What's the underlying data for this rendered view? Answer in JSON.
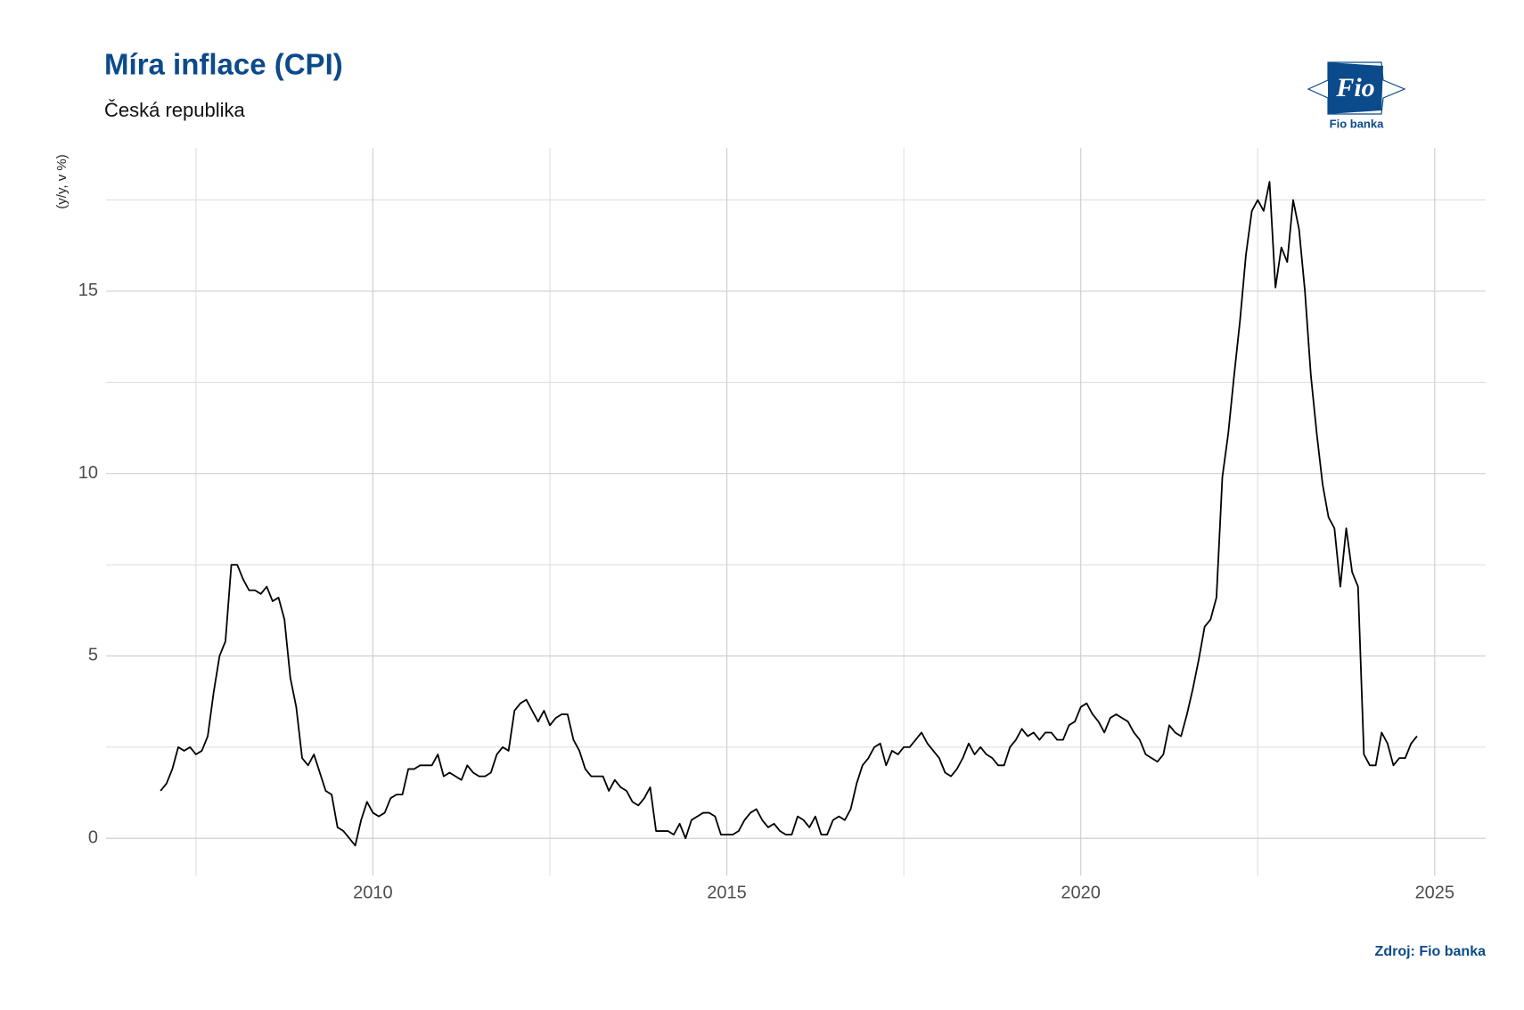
{
  "chart_data": {
    "type": "line",
    "title": "Míra inflace (CPI)",
    "subtitle": "Česká republika",
    "y_label": "(y/y, v %)",
    "source": "Zdroj: Fio banka",
    "logo": {
      "mark": "Fio",
      "label": "Fio banka"
    },
    "color": "#000000",
    "grid": true,
    "xlim": [
      2006.23,
      2025.72
    ],
    "ylim": [
      -1.02,
      18.93
    ],
    "xticks": [
      2010,
      2015,
      2020,
      2025
    ],
    "yticks": [
      0,
      5,
      10,
      15
    ],
    "minor_xticks": [
      2007.5,
      2012.5,
      2017.5,
      2022.5
    ],
    "minor_yticks": [
      2.5,
      7.5,
      12.5,
      17.5
    ],
    "x": [
      "2007-01",
      "2007-02",
      "2007-03",
      "2007-04",
      "2007-05",
      "2007-06",
      "2007-07",
      "2007-08",
      "2007-09",
      "2007-10",
      "2007-11",
      "2007-12",
      "2008-01",
      "2008-02",
      "2008-03",
      "2008-04",
      "2008-05",
      "2008-06",
      "2008-07",
      "2008-08",
      "2008-09",
      "2008-10",
      "2008-11",
      "2008-12",
      "2009-01",
      "2009-02",
      "2009-03",
      "2009-04",
      "2009-05",
      "2009-06",
      "2009-07",
      "2009-08",
      "2009-09",
      "2009-10",
      "2009-11",
      "2009-12",
      "2010-01",
      "2010-02",
      "2010-03",
      "2010-04",
      "2010-05",
      "2010-06",
      "2010-07",
      "2010-08",
      "2010-09",
      "2010-10",
      "2010-11",
      "2010-12",
      "2011-01",
      "2011-02",
      "2011-03",
      "2011-04",
      "2011-05",
      "2011-06",
      "2011-07",
      "2011-08",
      "2011-09",
      "2011-10",
      "2011-11",
      "2011-12",
      "2012-01",
      "2012-02",
      "2012-03",
      "2012-04",
      "2012-05",
      "2012-06",
      "2012-07",
      "2012-08",
      "2012-09",
      "2012-10",
      "2012-11",
      "2012-12",
      "2013-01",
      "2013-02",
      "2013-03",
      "2013-04",
      "2013-05",
      "2013-06",
      "2013-07",
      "2013-08",
      "2013-09",
      "2013-10",
      "2013-11",
      "2013-12",
      "2014-01",
      "2014-02",
      "2014-03",
      "2014-04",
      "2014-05",
      "2014-06",
      "2014-07",
      "2014-08",
      "2014-09",
      "2014-10",
      "2014-11",
      "2014-12",
      "2015-01",
      "2015-02",
      "2015-03",
      "2015-04",
      "2015-05",
      "2015-06",
      "2015-07",
      "2015-08",
      "2015-09",
      "2015-10",
      "2015-11",
      "2015-12",
      "2016-01",
      "2016-02",
      "2016-03",
      "2016-04",
      "2016-05",
      "2016-06",
      "2016-07",
      "2016-08",
      "2016-09",
      "2016-10",
      "2016-11",
      "2016-12",
      "2017-01",
      "2017-02",
      "2017-03",
      "2017-04",
      "2017-05",
      "2017-06",
      "2017-07",
      "2017-08",
      "2017-09",
      "2017-10",
      "2017-11",
      "2017-12",
      "2018-01",
      "2018-02",
      "2018-03",
      "2018-04",
      "2018-05",
      "2018-06",
      "2018-07",
      "2018-08",
      "2018-09",
      "2018-10",
      "2018-11",
      "2018-12",
      "2019-01",
      "2019-02",
      "2019-03",
      "2019-04",
      "2019-05",
      "2019-06",
      "2019-07",
      "2019-08",
      "2019-09",
      "2019-10",
      "2019-11",
      "2019-12",
      "2020-01",
      "2020-02",
      "2020-03",
      "2020-04",
      "2020-05",
      "2020-06",
      "2020-07",
      "2020-08",
      "2020-09",
      "2020-10",
      "2020-11",
      "2020-12",
      "2021-01",
      "2021-02",
      "2021-03",
      "2021-04",
      "2021-05",
      "2021-06",
      "2021-07",
      "2021-08",
      "2021-09",
      "2021-10",
      "2021-11",
      "2021-12",
      "2022-01",
      "2022-02",
      "2022-03",
      "2022-04",
      "2022-05",
      "2022-06",
      "2022-07",
      "2022-08",
      "2022-09",
      "2022-10",
      "2022-11",
      "2022-12",
      "2023-01",
      "2023-02",
      "2023-03",
      "2023-04",
      "2023-05",
      "2023-06",
      "2023-07",
      "2023-08",
      "2023-09",
      "2023-10",
      "2023-11",
      "2023-12",
      "2024-01",
      "2024-02",
      "2024-03",
      "2024-04",
      "2024-05",
      "2024-06",
      "2024-07",
      "2024-08",
      "2024-09",
      "2024-10"
    ],
    "values": [
      1.3,
      1.5,
      1.9,
      2.5,
      2.4,
      2.5,
      2.3,
      2.4,
      2.8,
      4.0,
      5.0,
      5.4,
      7.5,
      7.5,
      7.1,
      6.8,
      6.8,
      6.7,
      6.9,
      6.5,
      6.6,
      6.0,
      4.4,
      3.6,
      2.2,
      2.0,
      2.3,
      1.8,
      1.3,
      1.2,
      0.3,
      0.2,
      0.0,
      -0.2,
      0.5,
      1.0,
      0.7,
      0.6,
      0.7,
      1.1,
      1.2,
      1.2,
      1.9,
      1.9,
      2.0,
      2.0,
      2.0,
      2.3,
      1.7,
      1.8,
      1.7,
      1.6,
      2.0,
      1.8,
      1.7,
      1.7,
      1.8,
      2.3,
      2.5,
      2.4,
      3.5,
      3.7,
      3.8,
      3.5,
      3.2,
      3.5,
      3.1,
      3.3,
      3.4,
      3.4,
      2.7,
      2.4,
      1.9,
      1.7,
      1.7,
      1.7,
      1.3,
      1.6,
      1.4,
      1.3,
      1.0,
      0.9,
      1.1,
      1.4,
      0.2,
      0.2,
      0.2,
      0.1,
      0.4,
      0.0,
      0.5,
      0.6,
      0.7,
      0.7,
      0.6,
      0.1,
      0.1,
      0.1,
      0.2,
      0.5,
      0.7,
      0.8,
      0.5,
      0.3,
      0.4,
      0.2,
      0.1,
      0.1,
      0.6,
      0.5,
      0.3,
      0.6,
      0.1,
      0.1,
      0.5,
      0.6,
      0.5,
      0.8,
      1.5,
      2.0,
      2.2,
      2.5,
      2.6,
      2.0,
      2.4,
      2.3,
      2.5,
      2.5,
      2.7,
      2.9,
      2.6,
      2.4,
      2.2,
      1.8,
      1.7,
      1.9,
      2.2,
      2.6,
      2.3,
      2.5,
      2.3,
      2.2,
      2.0,
      2.0,
      2.5,
      2.7,
      3.0,
      2.8,
      2.9,
      2.7,
      2.9,
      2.9,
      2.7,
      2.7,
      3.1,
      3.2,
      3.6,
      3.7,
      3.4,
      3.2,
      2.9,
      3.3,
      3.4,
      3.3,
      3.2,
      2.9,
      2.7,
      2.3,
      2.2,
      2.1,
      2.3,
      3.1,
      2.9,
      2.8,
      3.4,
      4.1,
      4.9,
      5.8,
      6.0,
      6.6,
      9.9,
      11.1,
      12.7,
      14.2,
      16.0,
      17.2,
      17.5,
      17.2,
      18.0,
      15.1,
      16.2,
      15.8,
      17.5,
      16.7,
      15.0,
      12.7,
      11.1,
      9.7,
      8.8,
      8.5,
      6.9,
      8.5,
      7.3,
      6.9,
      2.3,
      2.0,
      2.0,
      2.9,
      2.6,
      2.0,
      2.2,
      2.2,
      2.6,
      2.8
    ]
  }
}
